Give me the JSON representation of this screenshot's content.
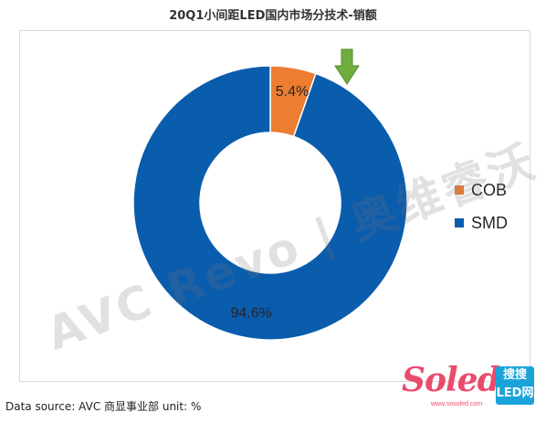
{
  "chart_data": {
    "type": "pie",
    "title": "20Q1小间距LED国内市场分技术-销额",
    "categories": [
      "COB",
      "SMD"
    ],
    "values": [
      5.4,
      94.6
    ],
    "data_labels": [
      "5.4%",
      "94.6%"
    ],
    "colors": [
      "#ED7D31",
      "#0A5CAD"
    ],
    "donut": true,
    "legend_position": "right"
  },
  "annotation": {
    "arrow_color": "#6FAE3E",
    "target": "COB"
  },
  "watermark": "AVC Revo | 奥维睿沃",
  "source": "Data source: AVC 商显事业部 unit: %",
  "logo": {
    "word": "Soled",
    "badge": "搜搜LED网",
    "url": "www.sosoled.com"
  }
}
